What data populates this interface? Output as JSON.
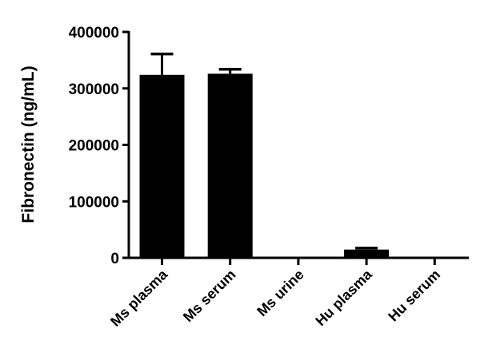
{
  "chart_data": {
    "type": "bar",
    "title": "",
    "xlabel": "",
    "ylabel": "Fibronectin (ng/mL)",
    "ylim": [
      0,
      400000
    ],
    "yticks": [
      "0",
      "100000",
      "200000",
      "300000",
      "400000"
    ],
    "categories": [
      "Ms plasma",
      "Ms serum",
      "Ms urine",
      "Hu plasma",
      "Hu serum"
    ],
    "values": [
      324000,
      326000,
      200,
      14600,
      1400
    ],
    "error_upper": [
      361000,
      334000,
      200,
      17400,
      1600
    ],
    "grid": false,
    "bar_color": "#000000"
  }
}
